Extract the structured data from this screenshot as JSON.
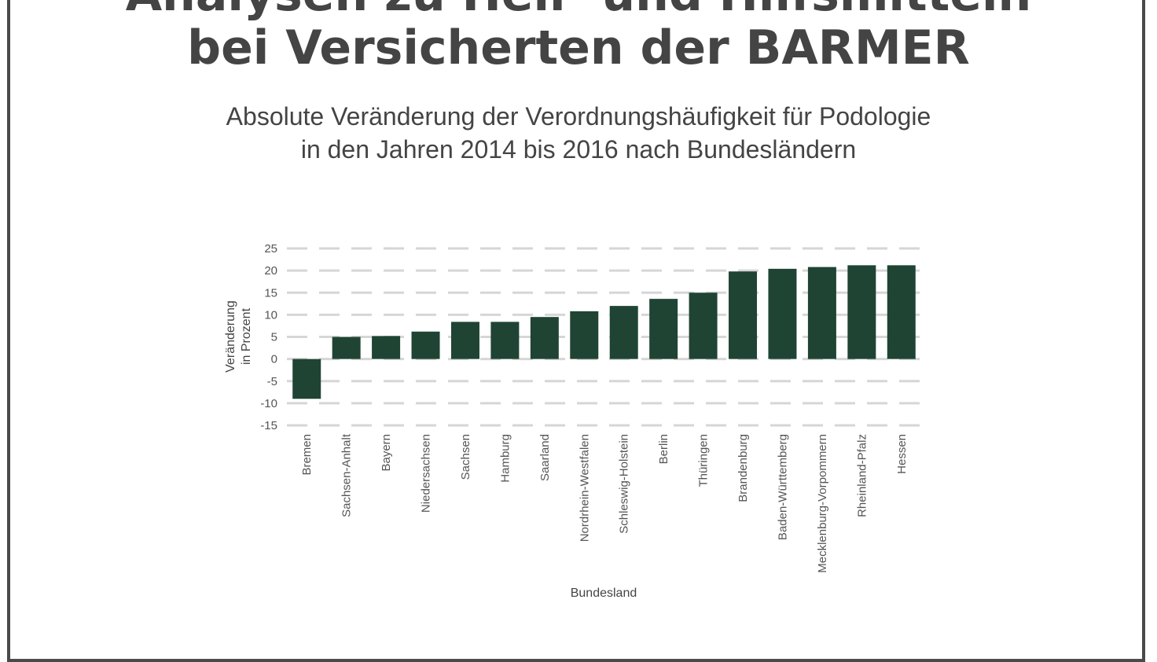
{
  "header": {
    "title_line1": "Analysen zu Heil- und Hilfsmitteln",
    "title_line2": "bei Versicherten der BARMER",
    "subtitle_line1": "Absolute Veränderung der Verordnungshäufigkeit für Podologie",
    "subtitle_line2": "in den Jahren 2014 bis 2016 nach Bundesländern"
  },
  "colors": {
    "bar": "#1f4434",
    "grid": "#d6d6d6",
    "text": "#444444"
  },
  "chart_data": {
    "type": "bar",
    "title": "Absolute Veränderung der Verordnungshäufigkeit für Podologie in den Jahren 2014 bis 2016 nach Bundesländern",
    "xlabel": "Bundesland",
    "ylabel_line1": "Veränderung",
    "ylabel_line2": "in Prozent",
    "ylim": [
      -15,
      25
    ],
    "yticks": [
      "25",
      "20",
      "15",
      "10",
      "5",
      "0",
      "-5",
      "-10",
      "-15"
    ],
    "ytick_values": [
      25,
      20,
      15,
      10,
      5,
      0,
      -5,
      -10,
      -15
    ],
    "grid": "horizontal dashed",
    "legend": "none",
    "categories": [
      "Bremen",
      "Sachsen-Anhalt",
      "Bayern",
      "Niedersachsen",
      "Sachsen",
      "Hamburg",
      "Saarland",
      "Nordrhein-Westfalen",
      "Schleswig-Holstein",
      "Berlin",
      "Thüringen",
      "Brandenburg",
      "Baden-Württemberg",
      "Mecklenburg-Vorpommern",
      "Rheinland-Pfalz",
      "Hessen"
    ],
    "values": [
      -9,
      5,
      5.2,
      6.2,
      8.4,
      8.4,
      9.5,
      10.8,
      12,
      13.6,
      15,
      19.8,
      20.4,
      20.8,
      21.2,
      21.2
    ]
  }
}
